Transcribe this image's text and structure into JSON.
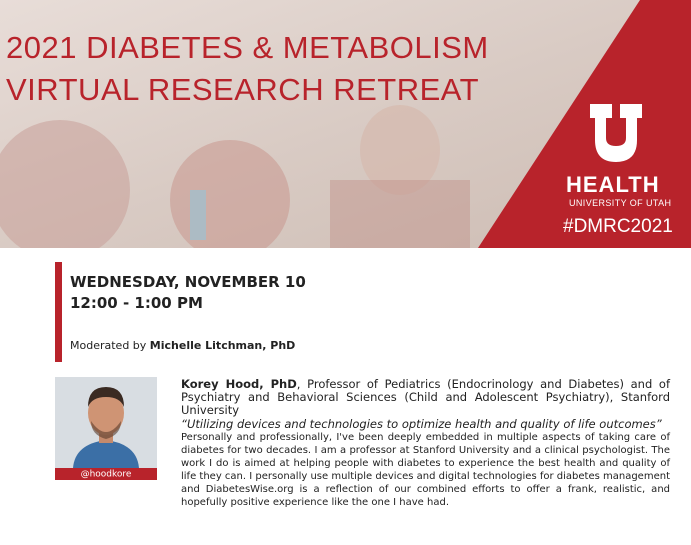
{
  "header": {
    "title_line1": "2021 DIABETES & METABOLISM",
    "title_line2": "VIRTUAL RESEARCH RETREAT",
    "logo_name": "HEALTH",
    "logo_subtitle": "UNIVERSITY OF UTAH",
    "hashtag": "#DMRC2021"
  },
  "event": {
    "date": "WEDNESDAY, NOVEMBER 10",
    "time": "12:00 - 1:00 PM",
    "moderator_prefix": "Moderated by",
    "moderator": "Michelle Litchman, PhD"
  },
  "speaker": {
    "handle": "@hoodkore",
    "name": "Korey Hood, PhD",
    "affiliation": ", Professor of Pediatrics (Endocrinology and Diabetes) and of Psychiatry and Behavioral Sciences (Child and Adolescent Psychiatry), Stanford University",
    "talk_title": "“Utilizing devices and technologies to optimize health and quality of life outcomes”",
    "bio": "Personally and professionally, I've been deeply embedded in multiple aspects of taking care of diabetes for two decades. I am a professor at Stanford University and a clinical psychologist. The work I do is aimed at helping people with diabetes to experience the best health and quality of life they can. I personally use multiple devices and digital technologies for diabetes management and DiabetesWise.org is a reflection of our combined efforts to offer a frank, realistic, and hopefully positive experience like the one I have had."
  }
}
